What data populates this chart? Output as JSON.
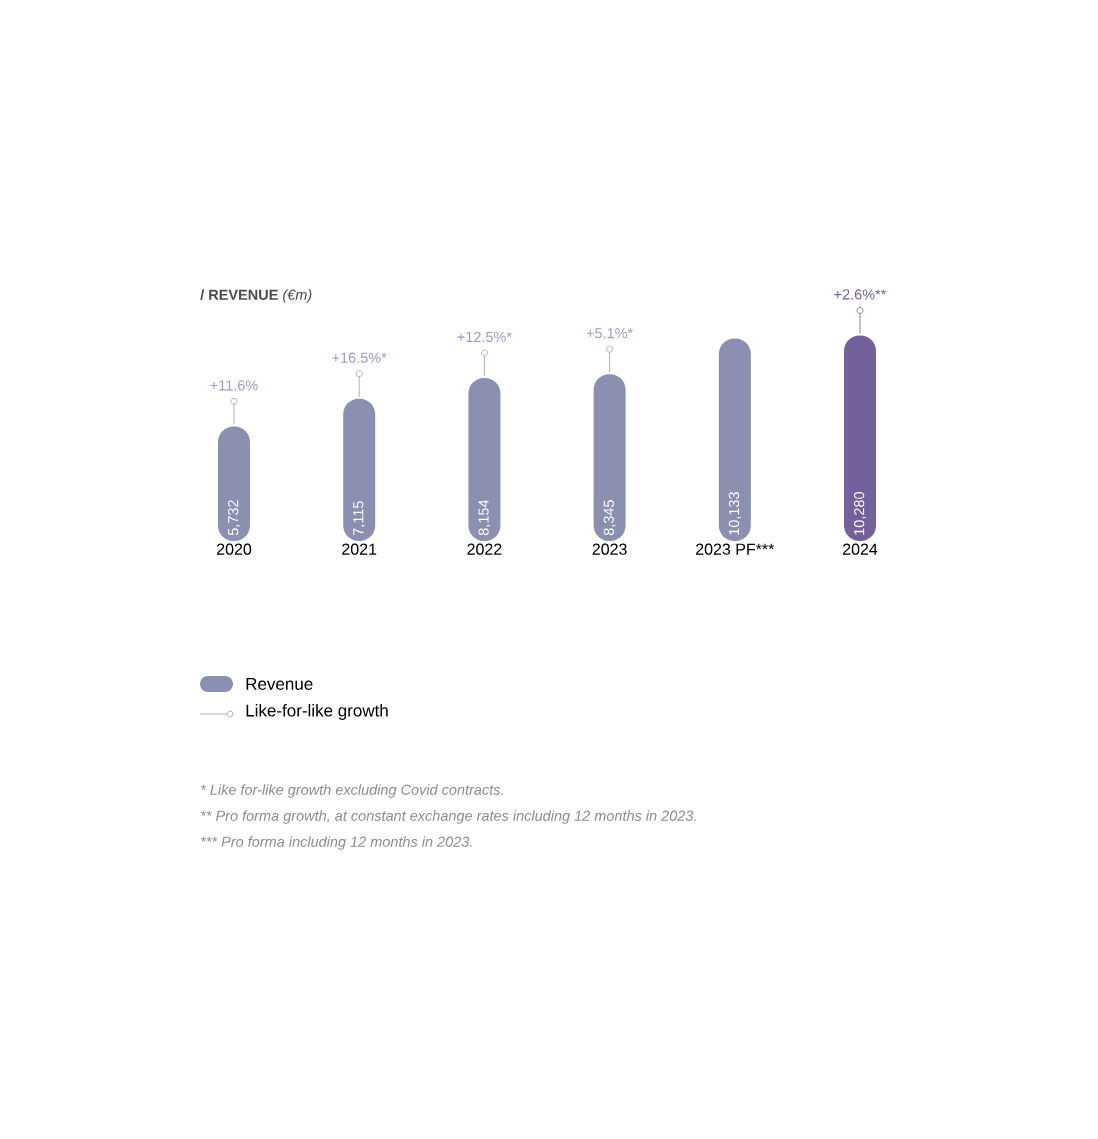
{
  "chart_data": {
    "type": "bar",
    "title": "**/ REVENUE** *(€m)*",
    "categories": [
      "2020",
      "2021",
      "2022",
      "2023",
      "2023 PF***",
      "2024"
    ],
    "series": [
      {
        "name": "Revenue",
        "values": [
          5732,
          7115,
          8154,
          8345,
          10133,
          10280
        ],
        "colors": [
          "#8b90b0",
          "#8b90b0",
          "#8b90b0",
          "#8b90b0",
          "#8b90b0",
          "#74619b"
        ],
        "value_labels": [
          "5,732",
          "7,115",
          "8,154",
          "8,345",
          "10,133",
          "10,280"
        ]
      }
    ],
    "tick_labels": "x",
    "legend": "bottom left",
    "annotations": [
      {
        "text": "+11.6%",
        "x": "2020",
        "y": 5732
      },
      {
        "text": "+16.5%*",
        "x": "2021",
        "y": 7115
      },
      {
        "text": "+12.5%*",
        "x": "2022",
        "y": 8154
      },
      {
        "text": "+5.1%*",
        "x": "2023",
        "y": 8345
      },
      {
        "text": "+2.6%**",
        "x": "2024",
        "y": 10280
      },
      "Like-for-like growth",
      "* Like for-like growth excluding Covid contracts.",
      "** Pro forma growth, at constant exchange rates including 12 months in 2023.",
      "*** Pro forma including 12 months in 2023."
    ]
  }
}
